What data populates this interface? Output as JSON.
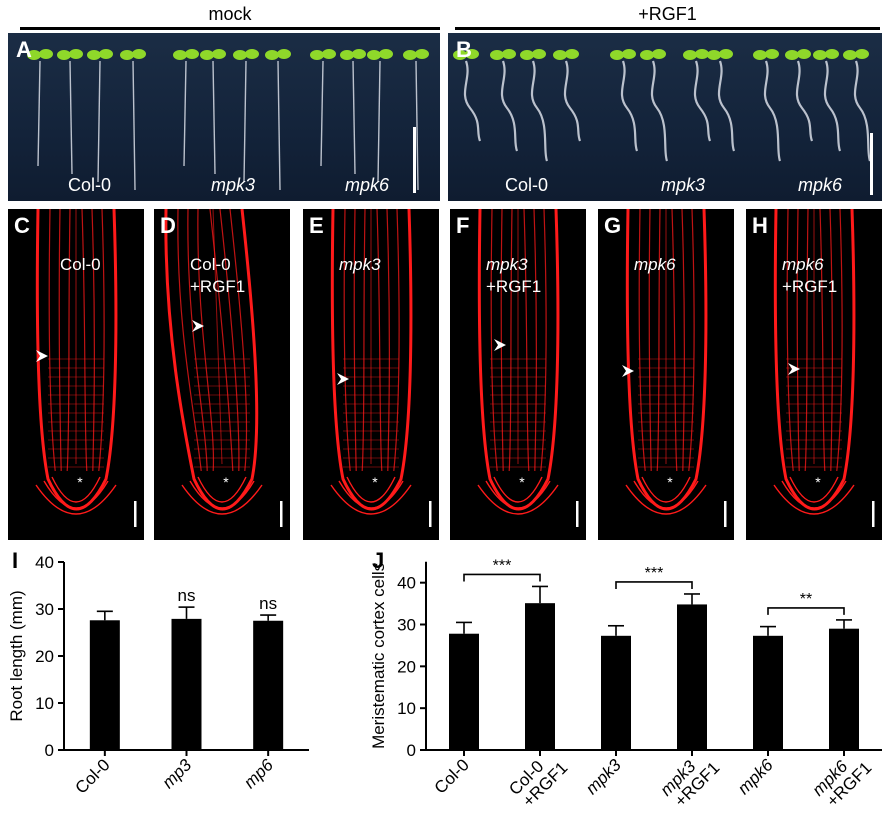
{
  "conditions": {
    "mock": "mock",
    "rgf": "+RGF1"
  },
  "photo_panels": [
    {
      "letter": "A",
      "labels": [
        "Col-0",
        "mpk3",
        "mpk6"
      ]
    },
    {
      "letter": "B",
      "labels": [
        "Col-0",
        "mpk3",
        "mpk6"
      ]
    }
  ],
  "confocal_panels": [
    {
      "letter": "C",
      "genotype": "Col-0",
      "treatment": ""
    },
    {
      "letter": "D",
      "genotype": "Col-0",
      "treatment": "+RGF1"
    },
    {
      "letter": "E",
      "genotype": "mpk3",
      "treatment": ""
    },
    {
      "letter": "F",
      "genotype": "mpk3",
      "treatment": "+RGF1"
    },
    {
      "letter": "G",
      "genotype": "mpk6",
      "treatment": ""
    },
    {
      "letter": "H",
      "genotype": "mpk6",
      "treatment": "+RGF1"
    }
  ],
  "colors": {
    "photo_bg": "#13233a",
    "seedling_green": "#8fd82a",
    "root_white": "#d8dde6",
    "confocal_red": "#ff1a1a"
  },
  "chart_data": [
    {
      "letter": "I",
      "type": "bar",
      "categories": [
        "Col-0",
        "mp3",
        "mp6"
      ],
      "category_italic": [
        false,
        true,
        true
      ],
      "values": [
        27.6,
        27.9,
        27.5
      ],
      "errors": [
        1.9,
        2.5,
        1.2
      ],
      "annotations": [
        "",
        "ns",
        "ns"
      ],
      "ylabel": "Root length (mm)",
      "ylim": [
        0,
        40
      ],
      "yticks": [
        0,
        10,
        20,
        30,
        40
      ]
    },
    {
      "letter": "J",
      "type": "bar",
      "categories": [
        "Col-0",
        "Col-0\n+RGF1",
        "mpk3",
        "mpk3\n+RGF1",
        "mpk6",
        "mpk6\n+RGF1"
      ],
      "category_italic": [
        false,
        false,
        true,
        true,
        true,
        true
      ],
      "values": [
        27.8,
        35.1,
        27.3,
        34.8,
        27.3,
        29.0
      ],
      "errors": [
        2.7,
        4.0,
        2.4,
        2.5,
        2.2,
        2.1
      ],
      "brackets": [
        {
          "from": 0,
          "to": 1,
          "label": "***"
        },
        {
          "from": 2,
          "to": 3,
          "label": "***"
        },
        {
          "from": 4,
          "to": 5,
          "label": "**"
        }
      ],
      "ylabel": "Meristematic cortex cells",
      "ylim": [
        0,
        45
      ],
      "yticks": [
        0,
        10,
        20,
        30,
        40
      ]
    }
  ]
}
